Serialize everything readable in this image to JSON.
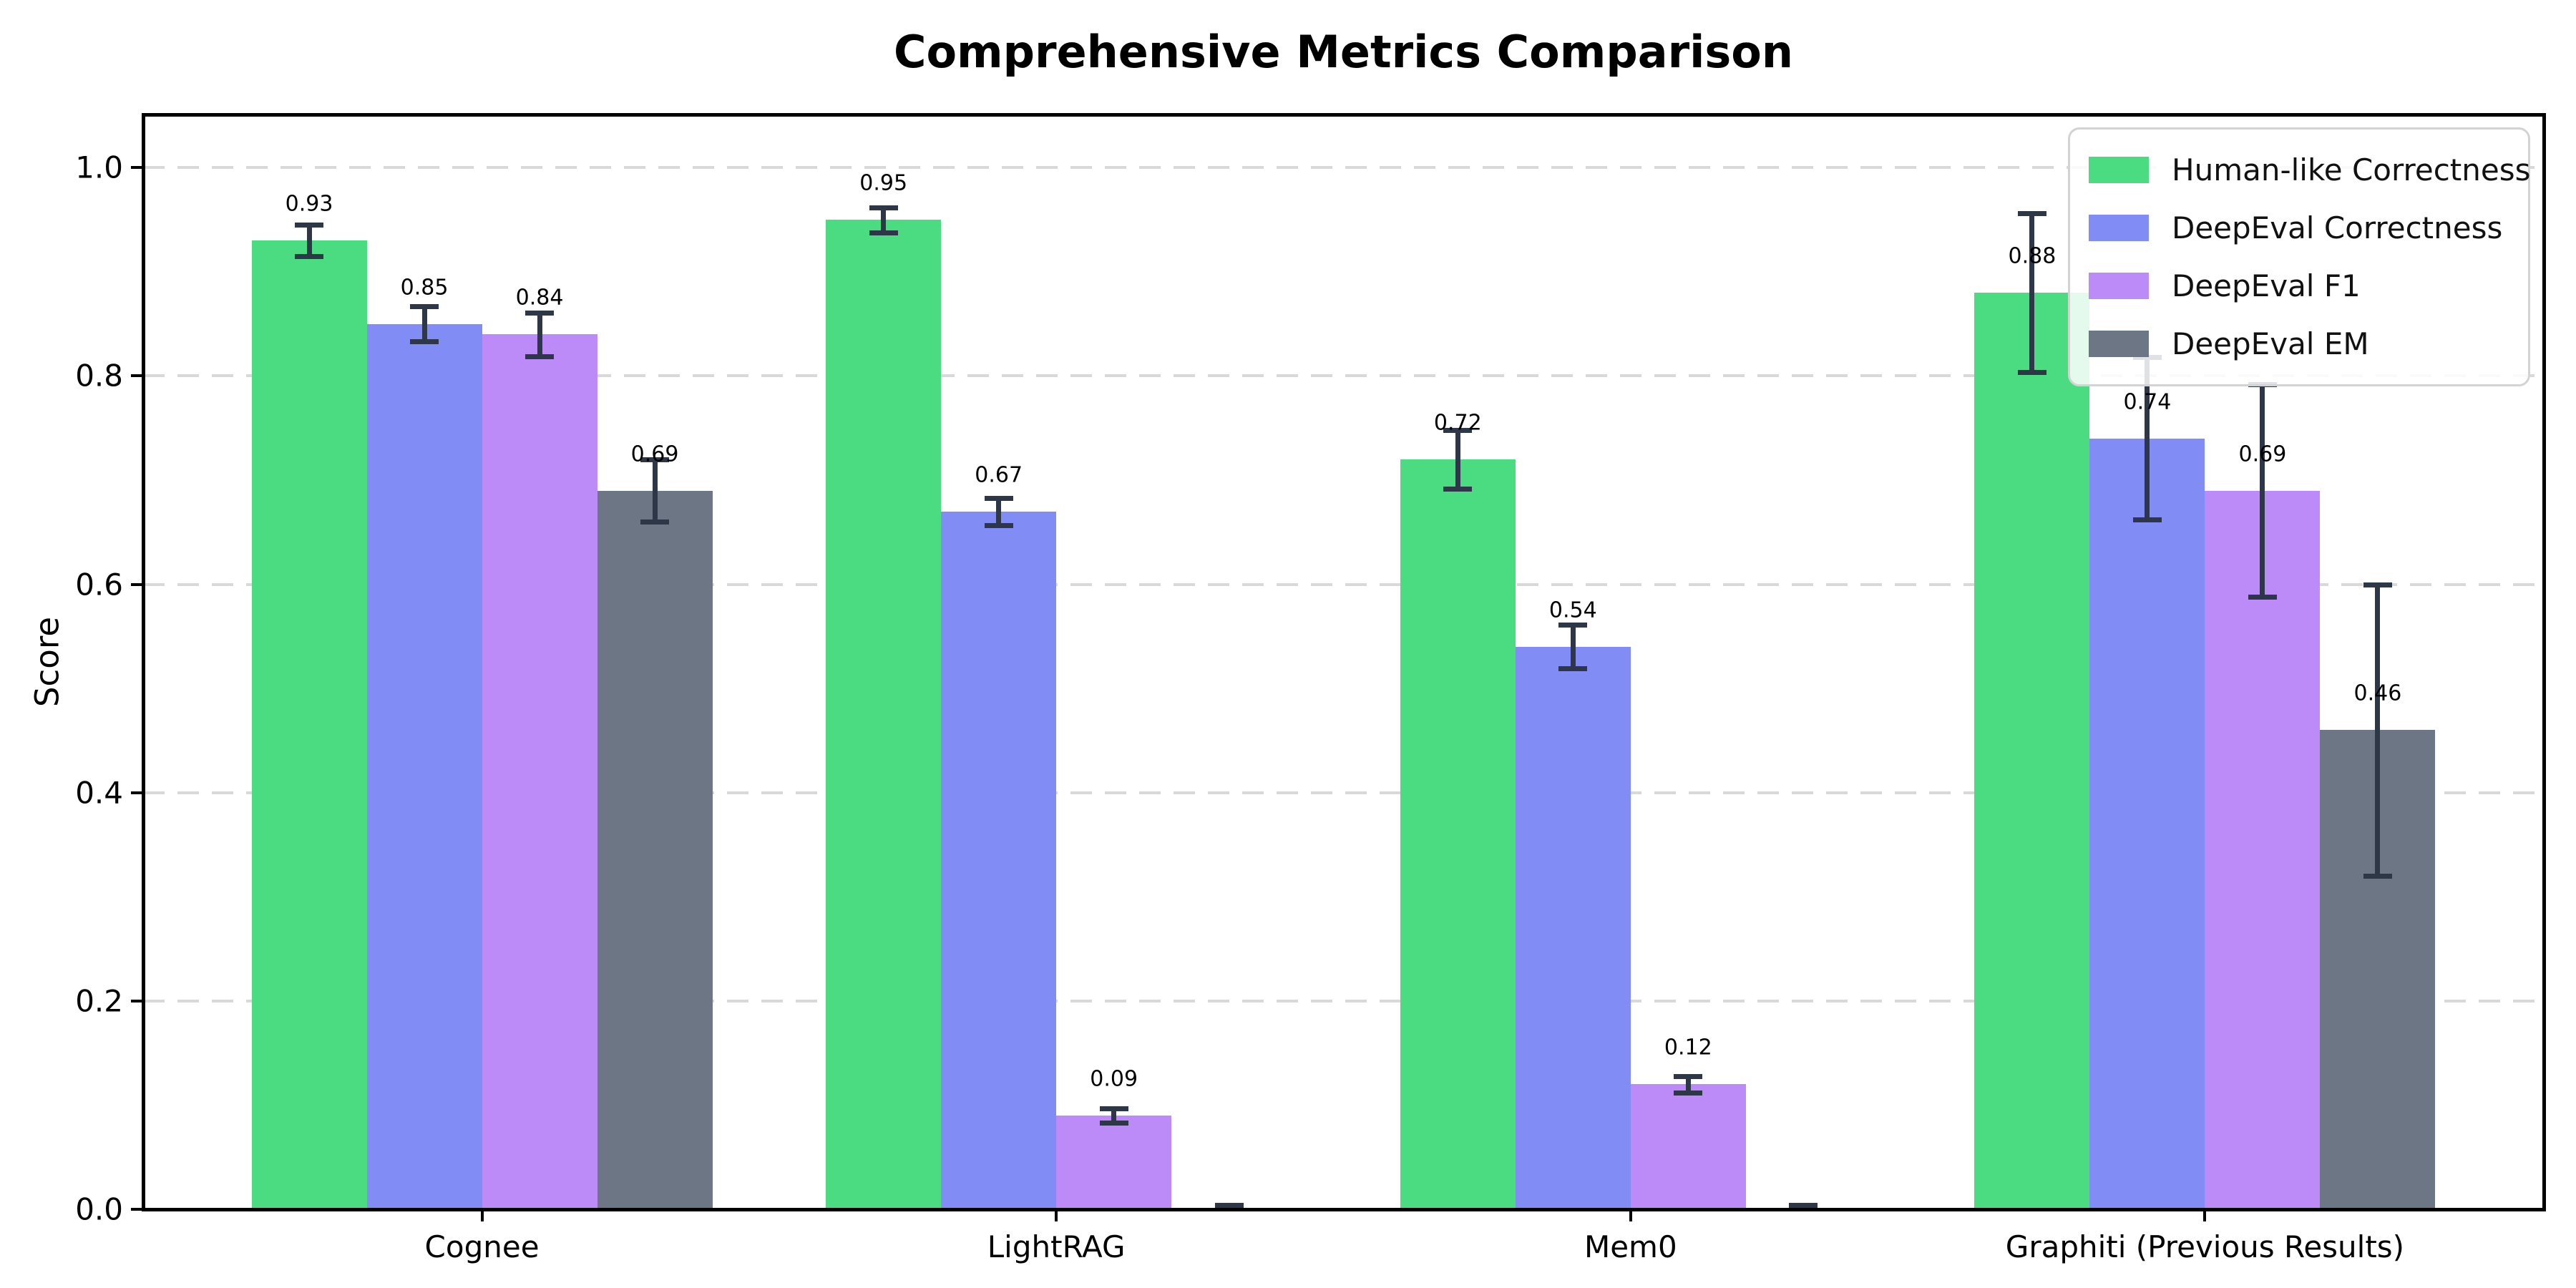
{
  "title": "Comprehensive Metrics Comparison",
  "chart_data": {
    "type": "bar",
    "title": "Comprehensive Metrics Comparison",
    "ylabel": "Score",
    "categories": [
      "Cognee",
      "LightRAG",
      "Mem0",
      "Graphiti (Previous Results)"
    ],
    "series": [
      {
        "name": "Human-like Correctness",
        "color": "#4bdc82",
        "values": [
          0.93,
          0.95,
          0.72,
          0.88
        ],
        "errors": [
          0.015,
          0.012,
          0.028,
          0.076
        ],
        "bar_labels": [
          "0.93",
          "0.95",
          "0.72",
          "0.88"
        ]
      },
      {
        "name": "DeepEval Correctness",
        "color": "#828cf5",
        "values": [
          0.85,
          0.67,
          0.54,
          0.74
        ],
        "errors": [
          0.017,
          0.013,
          0.021,
          0.078
        ],
        "bar_labels": [
          "0.85",
          "0.67",
          "0.54",
          "0.74"
        ]
      },
      {
        "name": "DeepEval F1",
        "color": "#bd8bf7",
        "values": [
          0.84,
          0.09,
          0.12,
          0.69
        ],
        "errors": [
          0.021,
          0.007,
          0.008,
          0.102
        ],
        "bar_labels": [
          "0.84",
          "0.09",
          "0.12",
          "0.69"
        ]
      },
      {
        "name": "DeepEval EM",
        "color": "#6d7685",
        "values": [
          0.69,
          0.0,
          0.0,
          0.46
        ],
        "errors": [
          0.03,
          0.004,
          0.004,
          0.14
        ],
        "bar_labels": [
          "0.69",
          "",
          "",
          "0.46"
        ]
      }
    ],
    "yticks": [
      0.0,
      0.2,
      0.4,
      0.6,
      0.8,
      1.0
    ],
    "ytick_labels": [
      "0.0",
      "0.2",
      "0.4",
      "0.6",
      "0.8",
      "1.0"
    ],
    "ylim": [
      0,
      1.05
    ],
    "grid": "horizontal-dashed",
    "grid_color": "#d9d9d9",
    "error_bar_color": "#2d3748",
    "legend_position": "upper right"
  }
}
